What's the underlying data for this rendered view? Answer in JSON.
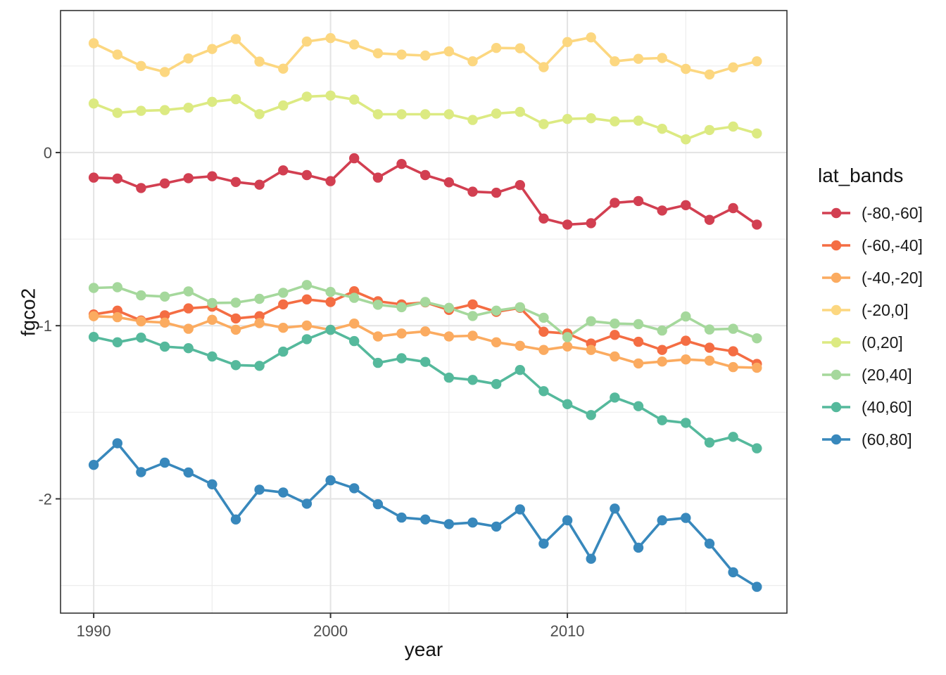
{
  "chart_data": {
    "type": "line",
    "title": "",
    "xlabel": "year",
    "ylabel": "fgco2",
    "legend_title": "lat_bands",
    "legend_position": "right",
    "grid": true,
    "x": [
      1990,
      1991,
      1992,
      1993,
      1994,
      1995,
      1996,
      1997,
      1998,
      1999,
      2000,
      2001,
      2002,
      2003,
      2004,
      2005,
      2006,
      2007,
      2008,
      2009,
      2010,
      2011,
      2012,
      2013,
      2014,
      2015,
      2016,
      2017,
      2018
    ],
    "xlim": [
      1988.6,
      2019.27
    ],
    "ylim": [
      -2.66,
      0.82
    ],
    "x_ticks": [
      1990,
      2000,
      2010
    ],
    "x_minor_ticks": [
      1995,
      2005,
      2015
    ],
    "y_ticks": [
      0,
      -1,
      -2
    ],
    "y_tick_labels": [
      "0",
      "-1",
      "-2"
    ],
    "y_minor_ticks": [
      0.5,
      -0.5,
      -1.5,
      -2.5
    ],
    "series": [
      {
        "label": "(-80,-60]",
        "color": "#d23f51",
        "values": [
          -0.145,
          -0.15,
          -0.205,
          -0.178,
          -0.148,
          -0.137,
          -0.17,
          -0.186,
          -0.103,
          -0.13,
          -0.165,
          -0.033,
          -0.145,
          -0.066,
          -0.13,
          -0.172,
          -0.226,
          -0.232,
          -0.188,
          -0.381,
          -0.416,
          -0.408,
          -0.29,
          -0.28,
          -0.335,
          -0.304,
          -0.389,
          -0.321,
          -0.416
        ]
      },
      {
        "label": "(-60,-40]",
        "color": "#f46d43",
        "values": [
          -0.935,
          -0.913,
          -0.97,
          -0.94,
          -0.9,
          -0.89,
          -0.958,
          -0.945,
          -0.877,
          -0.848,
          -0.863,
          -0.801,
          -0.859,
          -0.877,
          -0.865,
          -0.909,
          -0.877,
          -0.92,
          -0.897,
          -1.035,
          -1.045,
          -1.103,
          -1.053,
          -1.093,
          -1.14,
          -1.087,
          -1.127,
          -1.148,
          -1.221
        ]
      },
      {
        "label": "(-40,-20]",
        "color": "#fbab60",
        "values": [
          -0.945,
          -0.951,
          -0.975,
          -0.982,
          -1.018,
          -0.966,
          -1.023,
          -0.985,
          -1.012,
          -0.999,
          -1.024,
          -0.988,
          -1.062,
          -1.045,
          -1.033,
          -1.062,
          -1.058,
          -1.096,
          -1.116,
          -1.14,
          -1.12,
          -1.14,
          -1.178,
          -1.218,
          -1.207,
          -1.195,
          -1.202,
          -1.239,
          -1.243
        ]
      },
      {
        "label": "(-20,0]",
        "color": "#fcd780",
        "values": [
          0.631,
          0.566,
          0.5,
          0.465,
          0.543,
          0.598,
          0.655,
          0.525,
          0.484,
          0.641,
          0.661,
          0.624,
          0.573,
          0.566,
          0.56,
          0.584,
          0.527,
          0.604,
          0.602,
          0.493,
          0.638,
          0.665,
          0.527,
          0.541,
          0.546,
          0.483,
          0.451,
          0.492,
          0.527
        ]
      },
      {
        "label": "(0,20]",
        "color": "#dcea82",
        "values": [
          0.283,
          0.229,
          0.241,
          0.245,
          0.259,
          0.293,
          0.308,
          0.222,
          0.272,
          0.323,
          0.329,
          0.306,
          0.221,
          0.221,
          0.221,
          0.221,
          0.188,
          0.225,
          0.235,
          0.164,
          0.194,
          0.198,
          0.18,
          0.184,
          0.137,
          0.076,
          0.13,
          0.15,
          0.11
        ]
      },
      {
        "label": "(20,40]",
        "color": "#a5d89c",
        "values": [
          -0.782,
          -0.778,
          -0.825,
          -0.832,
          -0.802,
          -0.869,
          -0.867,
          -0.845,
          -0.81,
          -0.765,
          -0.805,
          -0.839,
          -0.879,
          -0.893,
          -0.863,
          -0.897,
          -0.944,
          -0.913,
          -0.893,
          -0.954,
          -1.066,
          -0.974,
          -0.988,
          -0.991,
          -1.028,
          -0.947,
          -1.022,
          -1.018,
          -1.073
        ]
      },
      {
        "label": "(40,60]",
        "color": "#55b99c",
        "values": [
          -1.065,
          -1.096,
          -1.069,
          -1.121,
          -1.13,
          -1.178,
          -1.228,
          -1.232,
          -1.15,
          -1.078,
          -1.024,
          -1.089,
          -1.215,
          -1.188,
          -1.209,
          -1.3,
          -1.313,
          -1.337,
          -1.256,
          -1.378,
          -1.453,
          -1.516,
          -1.415,
          -1.465,
          -1.546,
          -1.561,
          -1.675,
          -1.642,
          -1.708
        ]
      },
      {
        "label": "(60,80]",
        "color": "#3888bc",
        "values": [
          -1.804,
          -1.679,
          -1.846,
          -1.791,
          -1.848,
          -1.916,
          -2.119,
          -1.947,
          -1.963,
          -2.028,
          -1.893,
          -1.939,
          -2.031,
          -2.108,
          -2.119,
          -2.146,
          -2.137,
          -2.16,
          -2.061,
          -2.259,
          -2.124,
          -2.346,
          -2.056,
          -2.282,
          -2.124,
          -2.11,
          -2.259,
          -2.424,
          -2.508
        ]
      }
    ],
    "style": {
      "panel_background": "#ffffff",
      "panel_border": "#333333",
      "grid_major": "#e3e3e3",
      "grid_minor": "#ededed",
      "tick_color": "#333333",
      "tick_label_color": "#4d4d4d",
      "text_color": "#141414"
    }
  }
}
